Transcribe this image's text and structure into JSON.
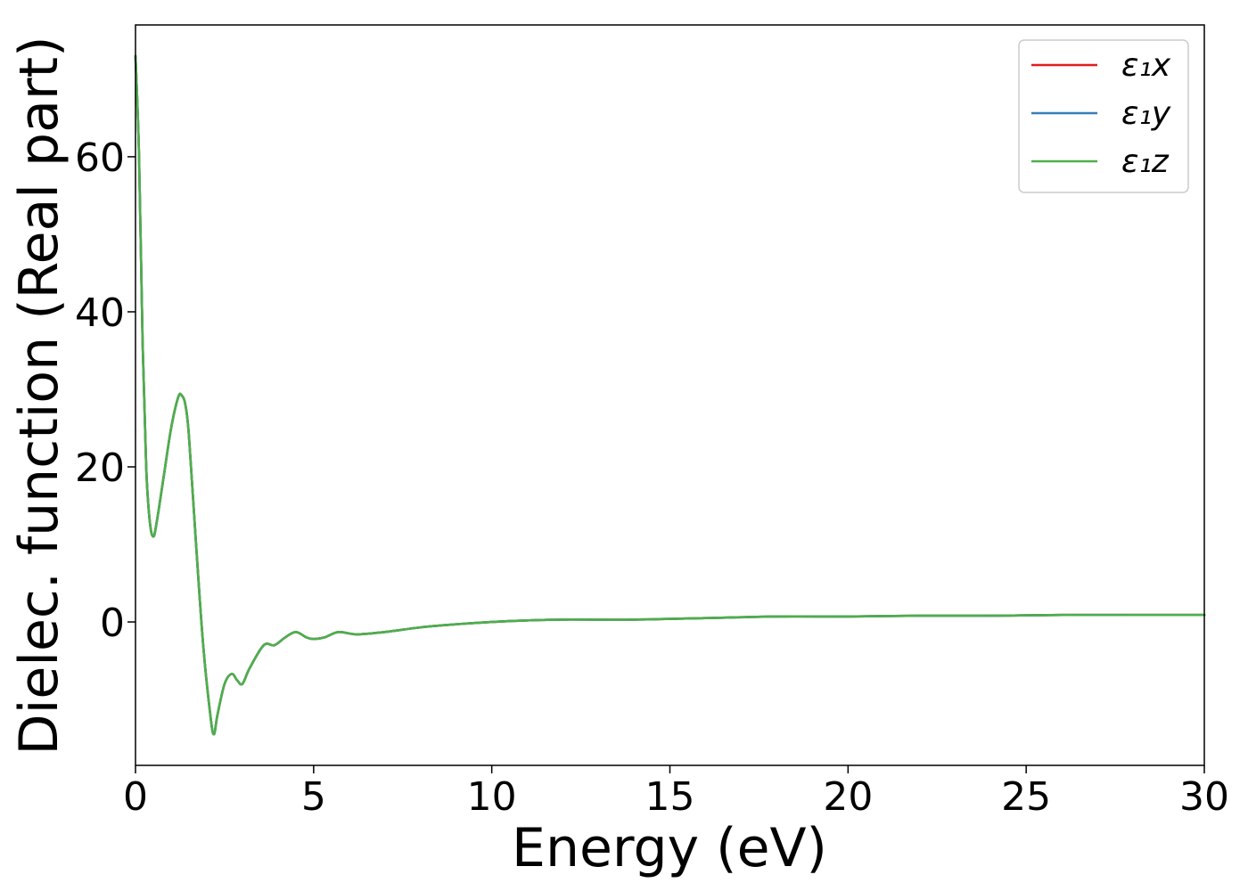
{
  "chart_data": {
    "type": "line",
    "title": "",
    "xlabel": "Energy (eV)",
    "ylabel": "Dielec. function (Real part)",
    "xlim": [
      0,
      30
    ],
    "ylim": [
      -18.5,
      77
    ],
    "xticks": [
      0,
      5,
      10,
      15,
      20,
      25,
      30
    ],
    "yticks": [
      0,
      20,
      40,
      60
    ],
    "grid": false,
    "legend_position": "top-right",
    "x": [
      0.0,
      0.1,
      0.2,
      0.3,
      0.4,
      0.5,
      0.6,
      0.8,
      1.0,
      1.2,
      1.3,
      1.4,
      1.5,
      1.7,
      1.9,
      2.1,
      2.2,
      2.3,
      2.5,
      2.7,
      2.85,
      3.0,
      3.2,
      3.6,
      3.9,
      4.2,
      4.5,
      4.8,
      5.0,
      5.3,
      5.7,
      6.2,
      7.0,
      8.0,
      9.0,
      10.0,
      11.0,
      12.0,
      14.0,
      16.0,
      18.0,
      20.0,
      22.0,
      24.0,
      26.0,
      28.5,
      30.0
    ],
    "series": [
      {
        "name": "ε₁x",
        "color": "#e41a1c",
        "values": [
          73,
          60,
          36,
          20,
          13,
          11,
          13,
          19,
          25,
          29,
          29.2,
          28,
          24,
          10,
          -3,
          -12,
          -14.5,
          -12,
          -8,
          -6.7,
          -7.5,
          -8,
          -6,
          -3,
          -3,
          -2,
          -1.3,
          -2,
          -2.2,
          -2,
          -1.3,
          -1.6,
          -1.3,
          -0.7,
          -0.3,
          0,
          0.2,
          0.3,
          0.3,
          0.5,
          0.7,
          0.7,
          0.8,
          0.8,
          0.9,
          0.9,
          0.9
        ]
      },
      {
        "name": "ε₁y",
        "color": "#377eb8",
        "values": [
          73,
          60,
          36,
          20,
          13,
          11,
          13,
          19,
          25,
          29,
          29.2,
          28,
          24,
          10,
          -3,
          -12,
          -14.5,
          -12,
          -8,
          -6.7,
          -7.5,
          -8,
          -6,
          -3,
          -3,
          -2,
          -1.3,
          -2,
          -2.2,
          -2,
          -1.3,
          -1.6,
          -1.3,
          -0.7,
          -0.3,
          0,
          0.2,
          0.3,
          0.3,
          0.5,
          0.7,
          0.7,
          0.8,
          0.8,
          0.9,
          0.9,
          0.9
        ]
      },
      {
        "name": "ε₁z",
        "color": "#4daf4a",
        "values": [
          73,
          60,
          36,
          20,
          13,
          11,
          13,
          19,
          25,
          29,
          29.2,
          28,
          24,
          10,
          -3,
          -12,
          -14.5,
          -12,
          -8,
          -6.7,
          -7.5,
          -8,
          -6,
          -3,
          -3,
          -2,
          -1.3,
          -2,
          -2.2,
          -2,
          -1.3,
          -1.6,
          -1.3,
          -0.7,
          -0.3,
          0,
          0.2,
          0.3,
          0.3,
          0.5,
          0.7,
          0.7,
          0.8,
          0.8,
          0.9,
          0.9,
          0.9
        ]
      }
    ]
  }
}
